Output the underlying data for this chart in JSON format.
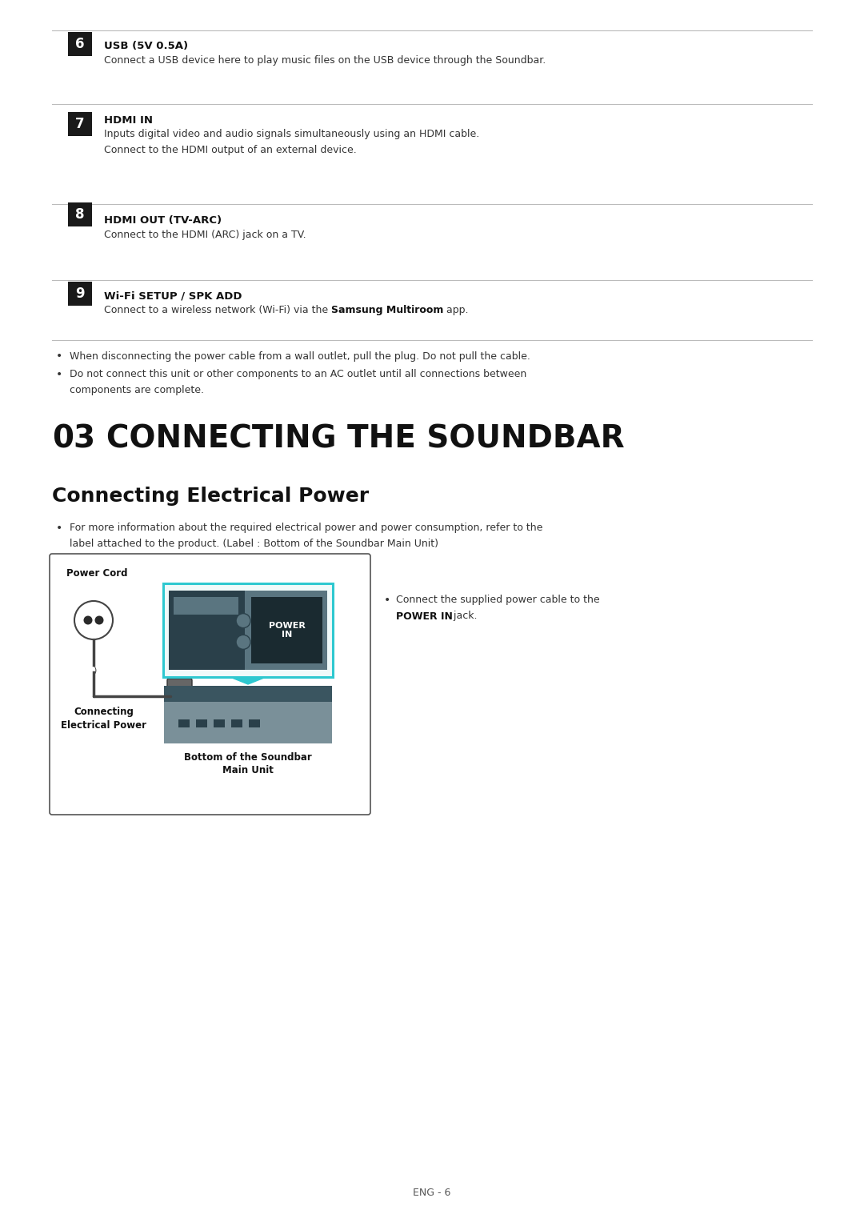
{
  "bg_color": "#ffffff",
  "divider_color": "#bbbbbb",
  "icon_bg": "#1a1a1a",
  "icon_text": "#ffffff",
  "cyan_color": "#2ec8d0",
  "gray_device": "#7a9099",
  "gray_device2": "#5a7580",
  "dark_device": "#3a5560",
  "darker_device": "#2a404a",
  "table_rows": [
    {
      "num": "6",
      "title": "USB (5V 0.5A)",
      "lines": [
        "Connect a USB device here to play music files on the USB device through the Soundbar."
      ],
      "bold_parts": []
    },
    {
      "num": "7",
      "title": "HDMI IN",
      "lines": [
        "Inputs digital video and audio signals simultaneously using an HDMI cable.",
        "Connect to the HDMI output of an external device."
      ],
      "bold_parts": []
    },
    {
      "num": "8",
      "title": "HDMI OUT (TV-ARC)",
      "lines": [
        "Connect to the HDMI (ARC) jack on a TV."
      ],
      "bold_parts": []
    },
    {
      "num": "9",
      "title": "Wi-Fi SETUP / SPK ADD",
      "lines": [
        "Connect to a wireless network (Wi-Fi) via the {Samsung Multiroom} app."
      ],
      "bold_parts": [
        "Samsung Multiroom"
      ]
    }
  ],
  "bullet1": "When disconnecting the power cable from a wall outlet, pull the plug. Do not pull the cable.",
  "bullet2a": "Do not connect this unit or other components to an AC outlet until all connections between",
  "bullet2b": "components are complete.",
  "chapter_num": "03",
  "chapter_title": "CONNECTING THE SOUNDBAR",
  "section_title": "Connecting Electrical Power",
  "bullet3a": "For more information about the required electrical power and power consumption, refer to the",
  "bullet3b": "label attached to the product. (Label : Bottom of the Soundbar Main Unit)",
  "diagram_label_power_cord": "Power Cord",
  "diagram_label_connecting": "Connecting",
  "diagram_label_electrical": "Electrical Power",
  "diagram_label_bottom": "Bottom of the Soundbar",
  "diagram_label_main": "Main Unit",
  "diagram_label_power_in_1": "POWER",
  "diagram_label_power_in_2": "IN",
  "bullet4a": "Connect the supplied power cable to the",
  "bullet4b": "POWER IN",
  "bullet4c": " jack.",
  "page_num": "ENG - 6"
}
